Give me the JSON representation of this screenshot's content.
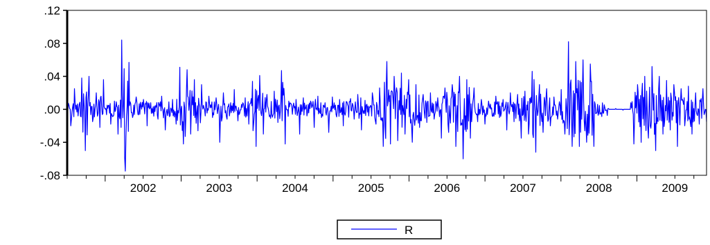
{
  "chart_data": {
    "type": "line",
    "title": "",
    "xlabel": "",
    "ylabel": "",
    "x_tick_labels": [
      "2002",
      "2003",
      "2004",
      "2005",
      "2006",
      "2007",
      "2008",
      "2009"
    ],
    "y_tick_labels": [
      ".12",
      ".08",
      ".04",
      ".00",
      "-.04",
      "-.08"
    ],
    "y_ticks": [
      0.12,
      0.08,
      0.04,
      0.0,
      -0.04,
      -0.08
    ],
    "ylim": [
      -0.08,
      0.12
    ],
    "xlim": [
      "2001-07",
      "2009-12"
    ],
    "grid": false,
    "legend": "bottom-center",
    "series": [
      {
        "name": "R",
        "color": "#0000ff",
        "x_start": "2001-07",
        "frequency": "daily (approx. 250 obs/year)",
        "values": [
          0.012,
          -0.02,
          0.025,
          -0.008,
          0.038,
          -0.05,
          0.04,
          -0.015,
          0.02,
          -0.022,
          0.036,
          0.005,
          -0.018,
          0.01,
          -0.03,
          0.084,
          -0.075,
          0.057,
          -0.01,
          0.015,
          -0.006,
          0.012,
          -0.02,
          0.008,
          0.004,
          -0.012,
          0.016,
          -0.025,
          0.009,
          0.012,
          -0.018,
          0.051,
          -0.042,
          0.048,
          -0.03,
          0.036,
          -0.026,
          0.03,
          -0.008,
          0.016,
          -0.01,
          0.014,
          -0.04,
          0.02,
          -0.012,
          0.008,
          0.024,
          -0.014,
          0.006,
          0.014,
          -0.018,
          0.034,
          -0.045,
          0.041,
          -0.03,
          0.018,
          -0.011,
          0.022,
          -0.016,
          0.047,
          -0.042,
          0.01,
          -0.006,
          0.012,
          -0.03,
          0.014,
          -0.008,
          0.01,
          -0.022,
          0.016,
          -0.01,
          0.008,
          -0.028,
          0.015,
          -0.006,
          0.012,
          -0.02,
          0.009,
          0.013,
          -0.012,
          0.018,
          -0.025,
          0.011,
          -0.008,
          0.02,
          -0.018,
          0.026,
          -0.045,
          0.058,
          -0.042,
          0.04,
          -0.038,
          0.044,
          -0.03,
          0.036,
          -0.04,
          0.03,
          -0.022,
          0.018,
          -0.016,
          0.02,
          -0.012,
          0.014,
          -0.035,
          0.026,
          -0.028,
          0.03,
          -0.045,
          0.04,
          -0.06,
          0.036,
          -0.035,
          0.026,
          -0.015,
          0.012,
          -0.018,
          0.01,
          -0.008,
          0.016,
          -0.01,
          0.012,
          -0.025,
          0.02,
          -0.015,
          0.018,
          -0.035,
          0.022,
          -0.03,
          0.046,
          -0.052,
          0.03,
          -0.028,
          0.025,
          -0.02,
          0.015,
          -0.012,
          0.024,
          -0.03,
          0.082,
          -0.045,
          0.058,
          -0.045,
          0.06,
          -0.04,
          0.055,
          -0.045,
          0.006,
          -0.004,
          0.002,
          0.001,
          0.0,
          0.001,
          0.0,
          -0.001,
          0.0,
          0.0,
          -0.042,
          0.03,
          -0.04,
          0.04,
          -0.035,
          0.052,
          -0.05,
          0.04,
          -0.03,
          0.035,
          -0.025,
          0.03,
          -0.045,
          0.025,
          -0.02,
          0.028,
          -0.03,
          0.02,
          -0.018,
          0.025,
          -0.015
        ]
      }
    ]
  },
  "legend": {
    "label": "R"
  }
}
